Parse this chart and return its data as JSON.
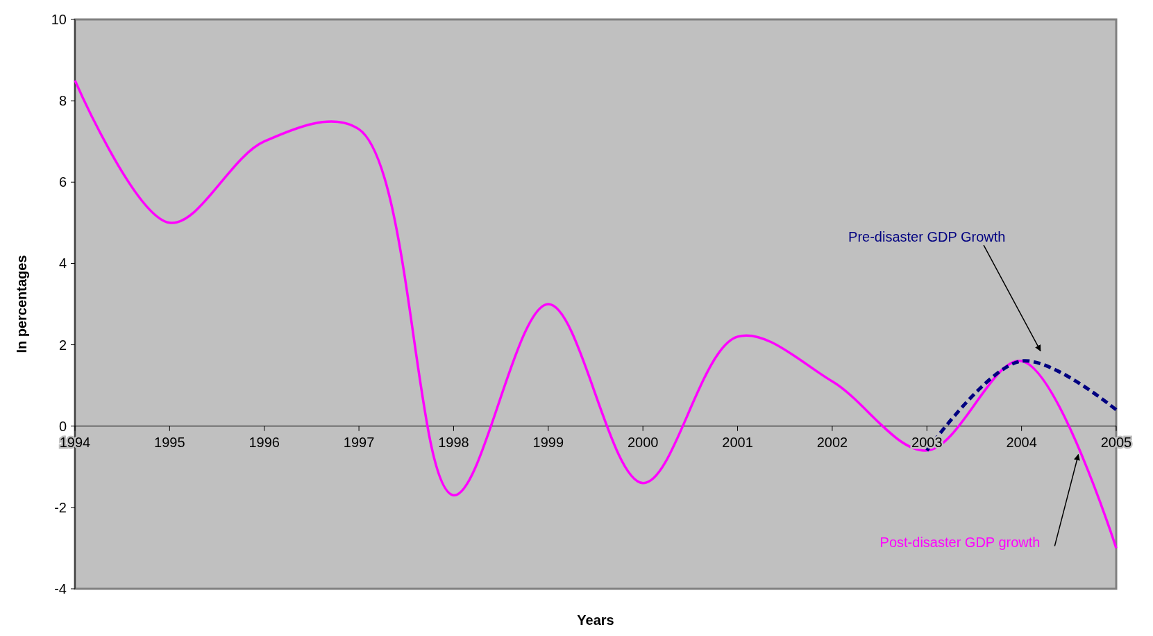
{
  "chart_data": {
    "type": "line",
    "xlabel": "Years",
    "ylabel": "In percentages",
    "x": [
      1994,
      1995,
      1996,
      1997,
      1998,
      1999,
      2000,
      2001,
      2002,
      2003,
      2004,
      2005
    ],
    "xlim": [
      1994,
      2005
    ],
    "xticks": [
      1994,
      1995,
      1996,
      1997,
      1998,
      1999,
      2000,
      2001,
      2002,
      2003,
      2004,
      2005
    ],
    "ylim": [
      -4,
      10
    ],
    "yticks": [
      -4,
      -2,
      0,
      2,
      4,
      6,
      8,
      10
    ],
    "series": [
      {
        "name": "Post-disaster GDP growth",
        "color": "#ff00ff",
        "line_style": "solid",
        "values": [
          8.5,
          5.0,
          7.0,
          7.3,
          -1.7,
          3.0,
          -1.4,
          2.2,
          1.1,
          -0.6,
          1.6,
          -3.0
        ]
      },
      {
        "name": "Pre-disaster GDP Growth",
        "color": "#000080",
        "line_style": "dashed",
        "x": [
          2003,
          2004,
          2005
        ],
        "values": [
          -0.6,
          1.6,
          0.4
        ]
      }
    ]
  }
}
